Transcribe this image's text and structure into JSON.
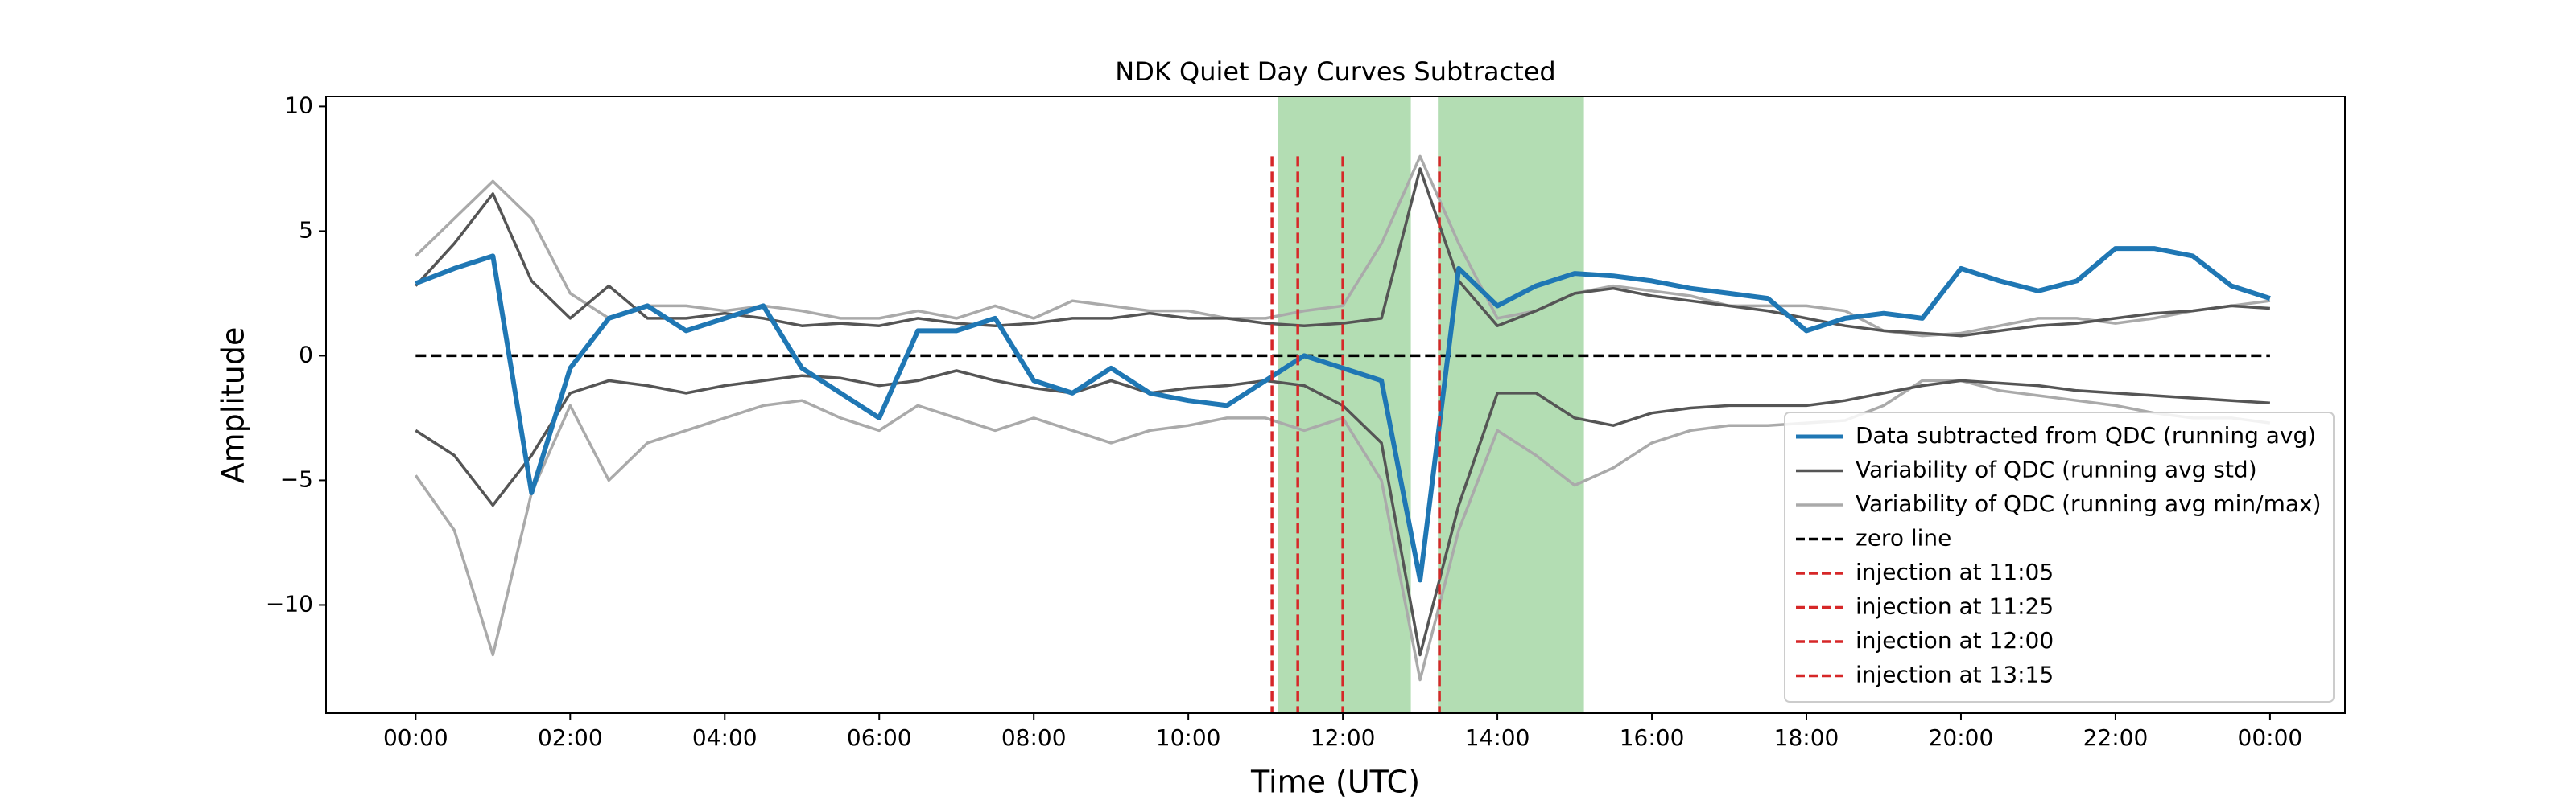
{
  "chart_data": {
    "type": "line",
    "title": "NDK Quiet Day Curves Subtracted",
    "x_label": "Time (UTC)",
    "y_label": "Amplitude",
    "x": [
      0,
      0.5,
      1,
      1.5,
      2,
      2.5,
      3,
      3.5,
      4,
      4.5,
      5,
      5.5,
      6,
      6.5,
      7,
      7.5,
      8,
      8.5,
      9,
      9.5,
      10,
      10.5,
      11,
      11.5,
      12,
      12.5,
      13,
      13.5,
      14,
      14.5,
      15,
      15.5,
      16,
      16.5,
      17,
      17.5,
      18,
      18.5,
      19,
      19.5,
      20,
      20.5,
      21,
      21.5,
      22,
      22.5,
      23,
      23.5,
      24
    ],
    "series": [
      {
        "name": "Data subtracted from QDC (running avg)",
        "color": "#1f77b4",
        "values": [
          2.9,
          3.5,
          4.0,
          -5.5,
          -0.5,
          1.5,
          2.0,
          1.0,
          1.5,
          2.0,
          -0.5,
          -1.5,
          -2.5,
          1.0,
          1.0,
          1.5,
          -1.0,
          -1.5,
          -0.5,
          -1.5,
          -1.8,
          -2.0,
          -1.0,
          0,
          -0.5,
          -1.0,
          -9,
          3.5,
          2.0,
          2.8,
          3.3,
          3.2,
          3.0,
          2.7,
          2.5,
          2.3,
          1.0,
          1.5,
          1.7,
          1.5,
          3.5,
          3.0,
          2.6,
          3.0,
          4.3,
          4.3,
          4.0,
          2.8,
          2.3
        ]
      },
      {
        "name": "Variability of QDC (running avg std)",
        "color": "#555555",
        "upper": [
          2.8,
          4.5,
          6.5,
          3.0,
          1.5,
          2.8,
          1.5,
          1.5,
          1.7,
          1.5,
          1.2,
          1.3,
          1.2,
          1.5,
          1.3,
          1.2,
          1.3,
          1.5,
          1.5,
          1.7,
          1.5,
          1.5,
          1.3,
          1.2,
          1.3,
          1.5,
          7.5,
          3.0,
          1.2,
          1.8,
          2.5,
          2.7,
          2.4,
          2.2,
          2.0,
          1.8,
          1.5,
          1.2,
          1.0,
          0.9,
          0.8,
          1.0,
          1.2,
          1.3,
          1.5,
          1.7,
          1.8,
          2.0,
          1.9
        ],
        "lower": [
          -3,
          -4.0,
          -6.0,
          -4.0,
          -1.5,
          -1.0,
          -1.2,
          -1.5,
          -1.2,
          -1.0,
          -0.8,
          -0.9,
          -1.2,
          -1.0,
          -0.6,
          -1.0,
          -1.3,
          -1.5,
          -1.0,
          -1.5,
          -1.3,
          -1.2,
          -1.0,
          -1.2,
          -2.0,
          -3.5,
          -12,
          -6,
          -1.5,
          -1.5,
          -2.5,
          -2.8,
          -2.3,
          -2.1,
          -2.0,
          -2.0,
          -2.0,
          -1.8,
          -1.5,
          -1.2,
          -1.0,
          -1.1,
          -1.2,
          -1.4,
          -1.5,
          -1.6,
          -1.7,
          -1.8,
          -1.9
        ]
      },
      {
        "name": "Variability of QDC (running avg min/max)",
        "color": "#aaaaaa",
        "upper": [
          4,
          5.5,
          7,
          5.5,
          2.5,
          1.5,
          2.0,
          2.0,
          1.8,
          2.0,
          1.8,
          1.5,
          1.5,
          1.8,
          1.5,
          2.0,
          1.5,
          2.2,
          2.0,
          1.8,
          1.8,
          1.5,
          1.5,
          1.8,
          2.0,
          4.5,
          8.0,
          4.5,
          1.5,
          1.8,
          2.5,
          2.8,
          2.6,
          2.4,
          2.0,
          2.0,
          2.0,
          1.8,
          1.0,
          0.8,
          0.9,
          1.2,
          1.5,
          1.5,
          1.3,
          1.5,
          1.8,
          2.0,
          2.2
        ],
        "lower": [
          -4.8,
          -7,
          -12,
          -5.5,
          -2.0,
          -5.0,
          -3.5,
          -3.0,
          -2.5,
          -2.0,
          -1.8,
          -2.5,
          -3.0,
          -2.0,
          -2.5,
          -3.0,
          -2.5,
          -3.0,
          -3.5,
          -3.0,
          -2.8,
          -2.5,
          -2.5,
          -3.0,
          -2.5,
          -5.0,
          -13,
          -7,
          -3,
          -4,
          -5.2,
          -4.5,
          -3.5,
          -3.0,
          -2.8,
          -2.8,
          -2.7,
          -2.6,
          -2.0,
          -1.0,
          -1.0,
          -1.4,
          -1.6,
          -1.8,
          -2.0,
          -2.3,
          -2.5,
          -2.5,
          -2.7
        ]
      }
    ],
    "zero_line": {
      "name": "zero line",
      "color": "#000000",
      "value": 0,
      "x_range": [
        0,
        24
      ]
    },
    "injections": [
      {
        "name": "injection at 11:05",
        "x": 11.083
      },
      {
        "name": "injection at 11:25",
        "x": 11.417
      },
      {
        "name": "injection at 12:00",
        "x": 12.0
      },
      {
        "name": "injection at 13:15",
        "x": 13.25
      }
    ],
    "injection_color": "#d62728",
    "injection_ymax": 8,
    "spans": [
      [
        11.16,
        12.88
      ],
      [
        13.23,
        15.12
      ]
    ],
    "span_color": "#2ca02c",
    "xlim": [
      -1.16,
      24.97
    ],
    "ylim": [
      -14.34,
      10.4
    ],
    "xticks": [
      {
        "value": 0,
        "label": "00:00"
      },
      {
        "value": 2,
        "label": "02:00"
      },
      {
        "value": 4,
        "label": "04:00"
      },
      {
        "value": 6,
        "label": "06:00"
      },
      {
        "value": 8,
        "label": "08:00"
      },
      {
        "value": 10,
        "label": "10:00"
      },
      {
        "value": 12,
        "label": "12:00"
      },
      {
        "value": 14,
        "label": "14:00"
      },
      {
        "value": 16,
        "label": "16:00"
      },
      {
        "value": 18,
        "label": "18:00"
      },
      {
        "value": 20,
        "label": "20:00"
      },
      {
        "value": 22,
        "label": "22:00"
      },
      {
        "value": 24,
        "label": "00:00"
      }
    ],
    "yticks": [
      {
        "value": -10,
        "label": "−10"
      },
      {
        "value": -5,
        "label": "−5"
      },
      0,
      5,
      10
    ],
    "legend": "lower right",
    "grid": false
  }
}
